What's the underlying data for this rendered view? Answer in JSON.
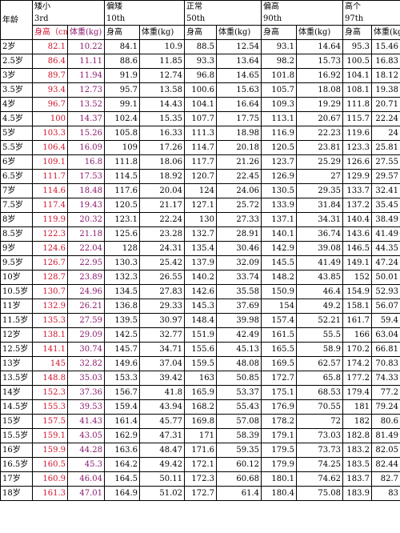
{
  "header": {
    "age_label": "年龄",
    "groups": [
      {
        "name": "矮小",
        "pct": "3rd"
      },
      {
        "name": "偏矮",
        "pct": "10th"
      },
      {
        "name": "正常",
        "pct": "50th"
      },
      {
        "name": "偏高",
        "pct": "90th"
      },
      {
        "name": "高个",
        "pct": "97th"
      }
    ],
    "first_group_subs": [
      "身高（cm)",
      "体重(kg)"
    ],
    "other_subs": [
      "身高",
      "体重(kg)"
    ]
  },
  "colors": {
    "height_3rd": "#d0142c",
    "weight_3rd": "#8a1a6e"
  },
  "rows": [
    {
      "age": "2岁",
      "v": [
        "82.1",
        "10.22",
        "84.1",
        "10.9",
        "88.5",
        "12.54",
        "93.1",
        "14.64",
        "95.3",
        "15.46"
      ]
    },
    {
      "age": "2.5岁",
      "v": [
        "86.4",
        "11.11",
        "88.6",
        "11.85",
        "93.3",
        "13.64",
        "98.2",
        "15.73",
        "100.5",
        "16.83"
      ]
    },
    {
      "age": "3岁",
      "v": [
        "89.7",
        "11.94",
        "91.9",
        "12.74",
        "96.8",
        "14.65",
        "101.8",
        "16.92",
        "104.1",
        "18.12"
      ]
    },
    {
      "age": "3.5岁",
      "v": [
        "93.4",
        "12.73",
        "95.7",
        "13.58",
        "100.6",
        "15.63",
        "105.7",
        "18.08",
        "108.1",
        "19.38"
      ]
    },
    {
      "age": "4岁",
      "v": [
        "96.7",
        "13.52",
        "99.1",
        "14.43",
        "104.1",
        "16.64",
        "109.3",
        "19.29",
        "111.8",
        "20.71"
      ]
    },
    {
      "age": "4.5岁",
      "v": [
        "100",
        "14.37",
        "102.4",
        "15.35",
        "107.7",
        "17.75",
        "113.1",
        "20.67",
        "115.7",
        "22.24"
      ]
    },
    {
      "age": "5岁",
      "v": [
        "103.3",
        "15.26",
        "105.8",
        "16.33",
        "111.3",
        "18.98",
        "116.9",
        "22.23",
        "119.6",
        "24"
      ]
    },
    {
      "age": "5.5岁",
      "v": [
        "106.4",
        "16.09",
        "109",
        "17.26",
        "114.7",
        "20.18",
        "120.5",
        "23.81",
        "123.3",
        "25.81"
      ]
    },
    {
      "age": "6岁",
      "v": [
        "109.1",
        "16.8",
        "111.8",
        "18.06",
        "117.7",
        "21.26",
        "123.7",
        "25.29",
        "126.6",
        "27.55"
      ]
    },
    {
      "age": "6.5岁",
      "v": [
        "111.7",
        "17.53",
        "114.5",
        "18.92",
        "120.7",
        "22.45",
        "126.9",
        "27",
        "129.9",
        "29.57"
      ]
    },
    {
      "age": "7岁",
      "v": [
        "114.6",
        "18.48",
        "117.6",
        "20.04",
        "124",
        "24.06",
        "130.5",
        "29.35",
        "133.7",
        "32.41"
      ]
    },
    {
      "age": "7.5岁",
      "v": [
        "117.4",
        "19.43",
        "120.5",
        "21.17",
        "127.1",
        "25.72",
        "133.9",
        "31.84",
        "137.2",
        "35.45"
      ]
    },
    {
      "age": "8岁",
      "v": [
        "119.9",
        "20.32",
        "123.1",
        "22.24",
        "130",
        "27.33",
        "137.1",
        "34.31",
        "140.4",
        "38.49"
      ]
    },
    {
      "age": "8.5岁",
      "v": [
        "122.3",
        "21.18",
        "125.6",
        "23.28",
        "132.7",
        "28.91",
        "140.1",
        "36.74",
        "143.6",
        "41.49"
      ]
    },
    {
      "age": "9岁",
      "v": [
        "124.6",
        "22.04",
        "128",
        "24.31",
        "135.4",
        "30.46",
        "142.9",
        "39.08",
        "146.5",
        "44.35"
      ]
    },
    {
      "age": "9.5岁",
      "v": [
        "126.7",
        "22.95",
        "130.3",
        "25.42",
        "137.9",
        "32.09",
        "145.5",
        "41.49",
        "149.1",
        "47.24"
      ]
    },
    {
      "age": "10岁",
      "v": [
        "128.7",
        "23.89",
        "132.3",
        "26.55",
        "140.2",
        "33.74",
        "148.2",
        "43.85",
        "152",
        "50.01"
      ]
    },
    {
      "age": "10.5岁",
      "v": [
        "130.7",
        "24.96",
        "134.5",
        "27.83",
        "142.6",
        "35.58",
        "150.9",
        "46.4",
        "154.9",
        "52.93"
      ]
    },
    {
      "age": "11岁",
      "v": [
        "132.9",
        "26.21",
        "136.8",
        "29.33",
        "145.3",
        "37.69",
        "154",
        "49.2",
        "158.1",
        "56.07"
      ]
    },
    {
      "age": "11.5岁",
      "v": [
        "135.3",
        "27.59",
        "139.5",
        "30.97",
        "148.4",
        "39.98",
        "157.4",
        "52.21",
        "161.7",
        "59.4"
      ]
    },
    {
      "age": "12岁",
      "v": [
        "138.1",
        "29.09",
        "142.5",
        "32.77",
        "151.9",
        "42.49",
        "161.5",
        "55.5",
        "166",
        "63.04"
      ]
    },
    {
      "age": "12.5岁",
      "v": [
        "141.1",
        "30.74",
        "145.7",
        "34.71",
        "155.6",
        "45.13",
        "165.5",
        "58.9",
        "170.2",
        "66.81"
      ]
    },
    {
      "age": "13岁",
      "v": [
        "145",
        "32.82",
        "149.6",
        "37.04",
        "159.5",
        "48.08",
        "169.5",
        "62.57",
        "174.2",
        "70.83"
      ]
    },
    {
      "age": "13.5岁",
      "v": [
        "148.8",
        "35.03",
        "153.3",
        "39.42",
        "163",
        "50.85",
        "172.7",
        "65.8",
        "177.2",
        "74.33"
      ]
    },
    {
      "age": "14岁",
      "v": [
        "152.3",
        "37.36",
        "156.7",
        "41.8",
        "165.9",
        "53.37",
        "175.1",
        "68.53",
        "179.4",
        "77.2"
      ]
    },
    {
      "age": "14.5岁",
      "v": [
        "155.3",
        "39.53",
        "159.4",
        "43.94",
        "168.2",
        "55.43",
        "176.9",
        "70.55",
        "181",
        "79.24"
      ]
    },
    {
      "age": "15岁",
      "v": [
        "157.5",
        "41.43",
        "161.4",
        "45.77",
        "169.8",
        "57.08",
        "178.2",
        "72",
        "182",
        "80.6"
      ]
    },
    {
      "age": "15.5岁",
      "v": [
        "159.1",
        "43.05",
        "162.9",
        "47.31",
        "171",
        "58.39",
        "179.1",
        "73.03",
        "182.8",
        "81.49"
      ]
    },
    {
      "age": "16岁",
      "v": [
        "159.9",
        "44.28",
        "163.6",
        "48.47",
        "171.6",
        "59.35",
        "179.5",
        "73.73",
        "183.2",
        "82.05"
      ]
    },
    {
      "age": "16.5岁",
      "v": [
        "160.5",
        "45.3",
        "164.2",
        "49.42",
        "172.1",
        "60.12",
        "179.9",
        "74.25",
        "183.5",
        "82.44"
      ]
    },
    {
      "age": "17岁",
      "v": [
        "160.9",
        "46.04",
        "164.5",
        "50.11",
        "172.3",
        "60.68",
        "180.1",
        "74.62",
        "183.7",
        "82.7"
      ]
    },
    {
      "age": "18岁",
      "v": [
        "161.3",
        "47.01",
        "164.9",
        "51.02",
        "172.7",
        "61.4",
        "180.4",
        "75.08",
        "183.9",
        "83"
      ]
    }
  ]
}
